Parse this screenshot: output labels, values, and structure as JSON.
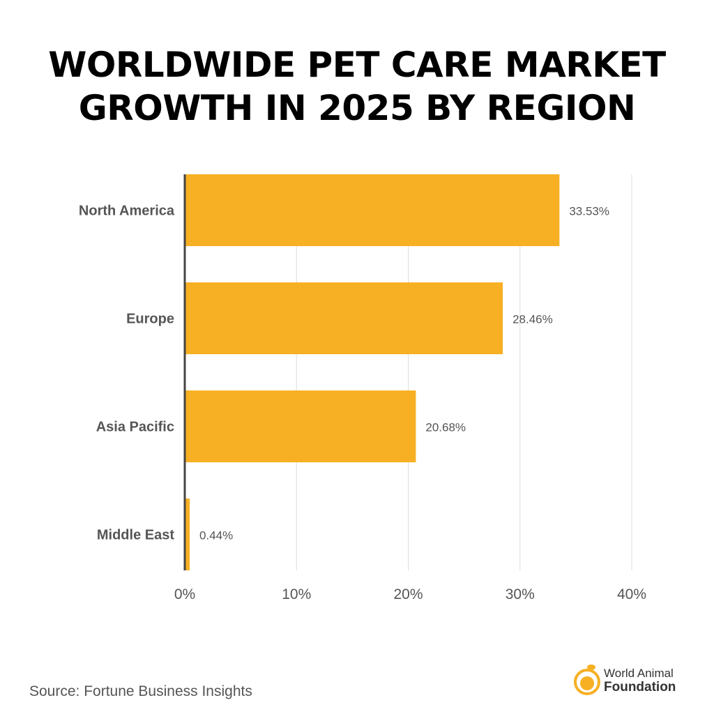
{
  "chart_data": {
    "type": "bar",
    "orientation": "horizontal",
    "title": "WORLDWIDE PET CARE MARKET GROWTH IN 2025 BY REGION",
    "categories": [
      "North America",
      "Europe",
      "Asia Pacific",
      "Middle East"
    ],
    "values": [
      33.53,
      28.46,
      20.68,
      0.44
    ],
    "value_labels": [
      "33.53%",
      "28.46%",
      "20.68%",
      "0.44%"
    ],
    "xlim": [
      0,
      40
    ],
    "xticks": [
      "0%",
      "10%",
      "20%",
      "30%",
      "40%"
    ],
    "xlabel": "",
    "ylabel": "",
    "grid": true,
    "bar_color": "#F7B023"
  },
  "source": "Source: Fortune Business Insights",
  "logo": {
    "line1": "World Animal",
    "line2": "Foundation",
    "color": "#F7B023"
  }
}
